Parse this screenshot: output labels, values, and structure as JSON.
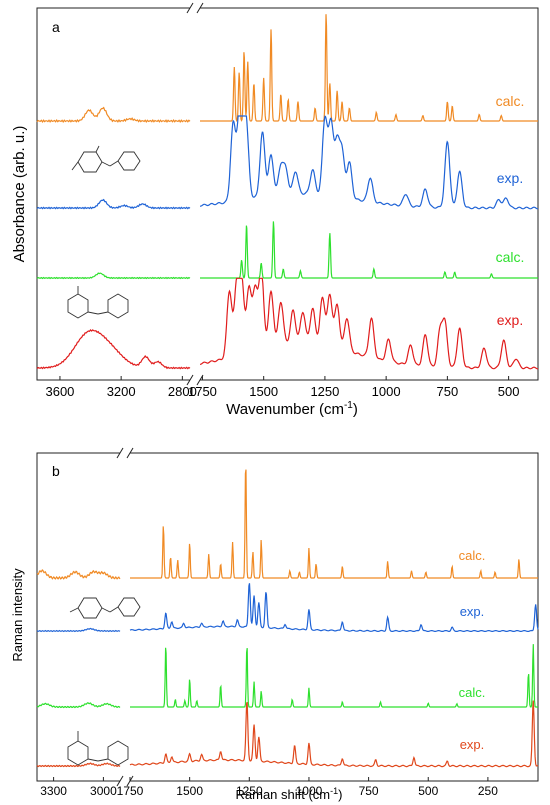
{
  "chart_data": [
    {
      "panel_label": "a",
      "type": "line",
      "xlabel": "Wavenumber (cm",
      "xlabel_sup": "-1",
      "xlabel_end": ")",
      "ylabel": "Absorbance (arb. u.)",
      "x_reversed": true,
      "x_segments": [
        {
          "range": [
            3750,
            2750
          ],
          "ticks": [
            3600,
            3200,
            2800
          ],
          "tick_labels": [
            "3600",
            "3200",
            "2800"
          ]
        },
        {
          "range": [
            1760,
            380
          ],
          "ticks": [
            1750,
            1500,
            1250,
            1000,
            750,
            500
          ],
          "tick_labels": [
            "1750",
            "1500",
            "1250",
            "1000",
            "750",
            "500"
          ]
        }
      ],
      "series": [
        {
          "name": "calc.",
          "color": "#f08a24",
          "peaks_cm": [
            3340,
            3070,
            3020,
            2960,
            1620,
            1600,
            1580,
            1565,
            1540,
            1500,
            1470,
            1430,
            1400,
            1360,
            1290,
            1245,
            1230,
            1200,
            1180,
            1150,
            1040,
            960,
            850,
            750,
            730,
            620,
            530
          ]
        },
        {
          "name": "exp.",
          "color": "#1f63d6",
          "peaks_cm": [
            3320,
            3060,
            1625,
            1600,
            1585,
            1570,
            1505,
            1470,
            1430,
            1410,
            1370,
            1300,
            1250,
            1225,
            1200,
            1180,
            1150,
            1065,
            920,
            840,
            750,
            700,
            540,
            510
          ]
        },
        {
          "name": "calc.",
          "color": "#2ee02e",
          "peaks_cm": [
            3340,
            3060,
            1590,
            1570,
            1510,
            1460,
            1420,
            1350,
            1230,
            1050,
            760,
            720,
            570
          ]
        },
        {
          "name": "exp.",
          "color": "#e01c1c",
          "peaks_cm": [
            3420,
            3280,
            3040,
            2960,
            1640,
            1610,
            1590,
            1560,
            1535,
            1510,
            1470,
            1430,
            1380,
            1340,
            1300,
            1260,
            1230,
            1200,
            1160,
            1060,
            990,
            900,
            840,
            780,
            760,
            700,
            600,
            520,
            470
          ]
        }
      ]
    },
    {
      "panel_label": "b",
      "type": "line",
      "xlabel": "Raman shift (cm",
      "xlabel_sup": "-1",
      "xlabel_end": ")",
      "ylabel": "Raman intensity",
      "x_reversed": true,
      "x_segments": [
        {
          "range": [
            3400,
            2900
          ],
          "ticks": [
            3300,
            3000
          ],
          "tick_labels": [
            "3300",
            "3000"
          ]
        },
        {
          "range": [
            1750,
            40
          ],
          "ticks": [
            1750,
            1500,
            1250,
            1000,
            750,
            500,
            250
          ],
          "tick_labels": [
            "1750",
            "1500",
            "1250",
            "1000",
            "750",
            "500",
            "250"
          ]
        }
      ],
      "series": [
        {
          "name": "calc.",
          "color": "#f08a24",
          "peaks_cm": [
            3370,
            3170,
            3130,
            3060,
            3000,
            1610,
            1580,
            1550,
            1500,
            1420,
            1370,
            1320,
            1265,
            1235,
            1200,
            1080,
            1040,
            1000,
            970,
            860,
            670,
            570,
            510,
            400,
            280,
            220,
            120
          ]
        },
        {
          "name": "exp.",
          "color": "#1f63d6",
          "peaks_cm": [
            3080,
            1600,
            1575,
            1525,
            1450,
            1360,
            1300,
            1250,
            1230,
            1210,
            1180,
            1100,
            1000,
            860,
            670,
            530,
            400,
            50
          ]
        },
        {
          "name": "calc.",
          "color": "#2ee02e",
          "peaks_cm": [
            3350,
            3090,
            2980,
            1600,
            1560,
            1520,
            1500,
            1470,
            1370,
            1260,
            1230,
            1200,
            1070,
            1000,
            860,
            700,
            500,
            380,
            80,
            60
          ]
        },
        {
          "name": "exp.",
          "color": "#e0481c",
          "peaks_cm": [
            3080,
            2980,
            1600,
            1575,
            1500,
            1450,
            1370,
            1260,
            1230,
            1210,
            1060,
            1000,
            860,
            720,
            560,
            420,
            60
          ]
        }
      ]
    }
  ]
}
